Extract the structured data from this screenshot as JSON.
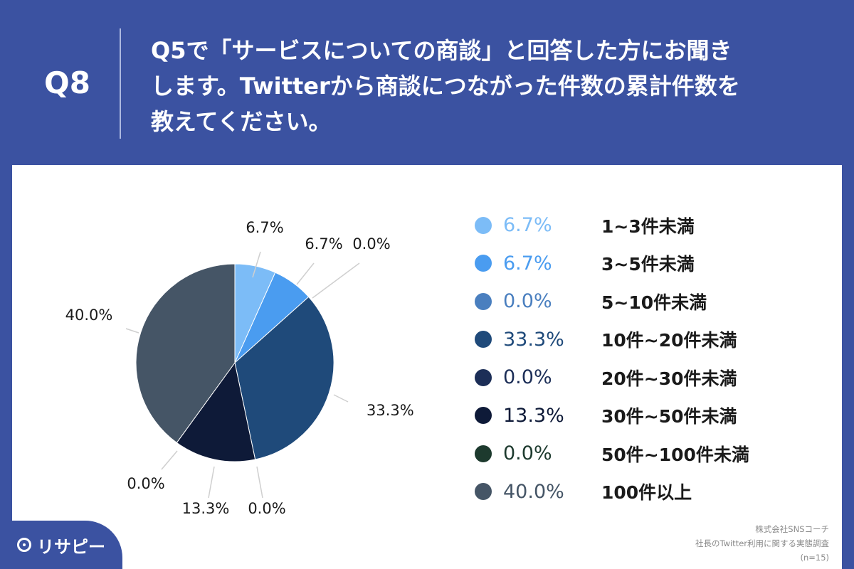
{
  "header": {
    "qnum": "Q8",
    "question_lines": [
      "Q5で「サービスについての商談」と回答した方にお聞き",
      "します。Twitterから商談につながった件数の累計件数を",
      "教えてください。"
    ]
  },
  "chart_data": {
    "type": "pie",
    "categories": [
      "1~3件未満",
      "3~5件未満",
      "5~10件未満",
      "10件~20件未満",
      "20件~30件未満",
      "30件~50件未満",
      "50件~100件未満",
      "100件以上"
    ],
    "values": [
      6.7,
      6.7,
      0.0,
      33.3,
      0.0,
      13.3,
      0.0,
      40.0
    ],
    "labels": [
      "6.7%",
      "6.7%",
      "0.0%",
      "33.3%",
      "0.0%",
      "13.3%",
      "0.0%",
      "40.0%"
    ],
    "colors": [
      "#7cbcf7",
      "#4a9cf0",
      "#4a7fbf",
      "#1f4a7a",
      "#1c2e57",
      "#0e1a38",
      "#1d3a2e",
      "#455566"
    ],
    "legend_placement": "right"
  },
  "legend": {
    "value_colors": [
      "#7cbcf7",
      "#4a9cf0",
      "#4a7fbf",
      "#1f4a7a",
      "#1c2e57",
      "#0e1a38",
      "#1d3a2e",
      "#455566"
    ]
  },
  "source": {
    "line1": "株式会社SNSコーチ",
    "line2": "社長のTwitter利用に関する実態調査",
    "line3": "(n=15)"
  },
  "logo": {
    "icon": "pin-icon",
    "text": "リサピー"
  }
}
